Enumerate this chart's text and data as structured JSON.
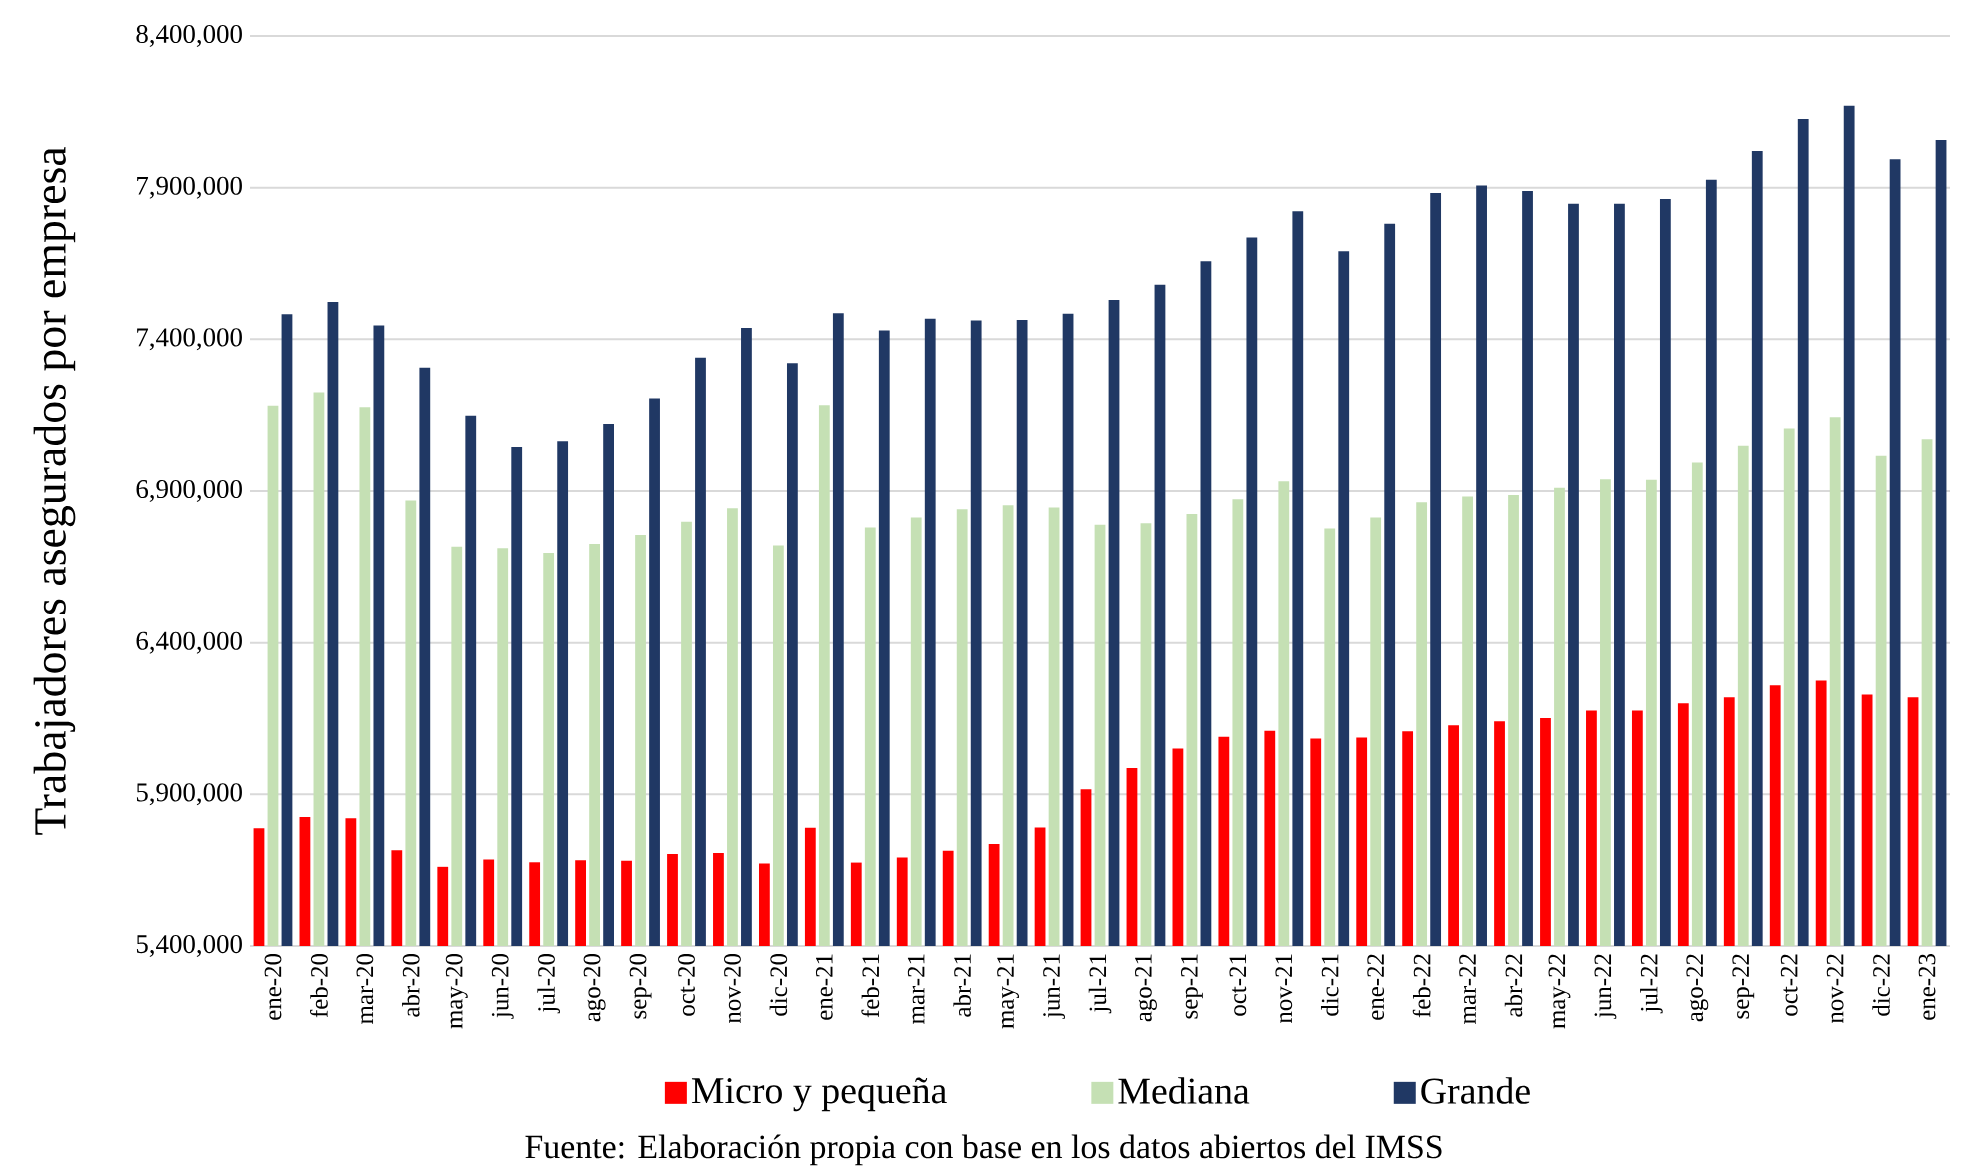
{
  "chart_data": {
    "type": "bar",
    "ylabel": "Trabajadores asegurados por empresa",
    "categories": [
      "ene-20",
      "feb-20",
      "mar-20",
      "abr-20",
      "may-20",
      "jun-20",
      "jul-20",
      "ago-20",
      "sep-20",
      "oct-20",
      "nov-20",
      "dic-20",
      "ene-21",
      "feb-21",
      "mar-21",
      "abr-21",
      "may-21",
      "jun-21",
      "jul-21",
      "ago-21",
      "sep-21",
      "oct-21",
      "nov-21",
      "dic-21",
      "ene-22",
      "feb-22",
      "mar-22",
      "abr-22",
      "may-22",
      "jun-22",
      "jul-22",
      "ago-22",
      "sep-22",
      "oct-22",
      "nov-22",
      "dic-22",
      "ene-23"
    ],
    "series": [
      {
        "name": "Micro y pequeña",
        "color": "#ff0000",
        "values": [
          5788000,
          5825000,
          5821000,
          5716000,
          5661000,
          5685000,
          5676000,
          5683000,
          5681000,
          5703000,
          5707000,
          5672000,
          5790000,
          5675000,
          5692000,
          5714000,
          5736000,
          5791000,
          5917000,
          5987000,
          6051000,
          6090000,
          6110000,
          6084000,
          6087000,
          6108000,
          6128000,
          6141000,
          6152000,
          6176000,
          6176000,
          6200000,
          6220000,
          6260000,
          6275000,
          6229000,
          6220000
        ]
      },
      {
        "name": "Mediana",
        "color": "#c5e0b4",
        "values": [
          7181000,
          7225000,
          7176000,
          6869000,
          6716000,
          6711000,
          6696000,
          6725000,
          6755000,
          6799000,
          6843000,
          6720000,
          7183000,
          6780000,
          6813000,
          6840000,
          6853000,
          6846000,
          6789000,
          6794000,
          6824000,
          6873000,
          6932000,
          6776000,
          6813000,
          6863000,
          6882000,
          6887000,
          6911000,
          6939000,
          6937000,
          6994000,
          7049000,
          7106000,
          7143000,
          7016000,
          7071000
        ]
      },
      {
        "name": "Grande",
        "color": "#203864",
        "values": [
          7483000,
          7523000,
          7446000,
          7306000,
          7148000,
          7045000,
          7064000,
          7121000,
          7205000,
          7339000,
          7437000,
          7321000,
          7486000,
          7429000,
          7468000,
          7462000,
          7464000,
          7484000,
          7530000,
          7580000,
          7657000,
          7736000,
          7822000,
          7690000,
          7781000,
          7882000,
          7907000,
          7889000,
          7847000,
          7847000,
          7863000,
          7926000,
          8021000,
          8126000,
          8170000,
          7994000,
          8057000
        ]
      }
    ],
    "ylim": [
      5400000,
      8400000
    ],
    "yticks": [
      {
        "value": 5400000,
        "label": "5,400,000"
      },
      {
        "value": 5900000,
        "label": "5,900,000"
      },
      {
        "value": 6400000,
        "label": "6,400,000"
      },
      {
        "value": 6900000,
        "label": "6,900,000"
      },
      {
        "value": 7400000,
        "label": "7,400,000"
      },
      {
        "value": 7900000,
        "label": "7,900,000"
      },
      {
        "value": 8400000,
        "label": "8,400,000"
      }
    ],
    "grid": "y",
    "legend": "bottom",
    "annotations": [
      "Fuente: Elaboración propia con base en los datos abiertos del IMSS"
    ]
  }
}
